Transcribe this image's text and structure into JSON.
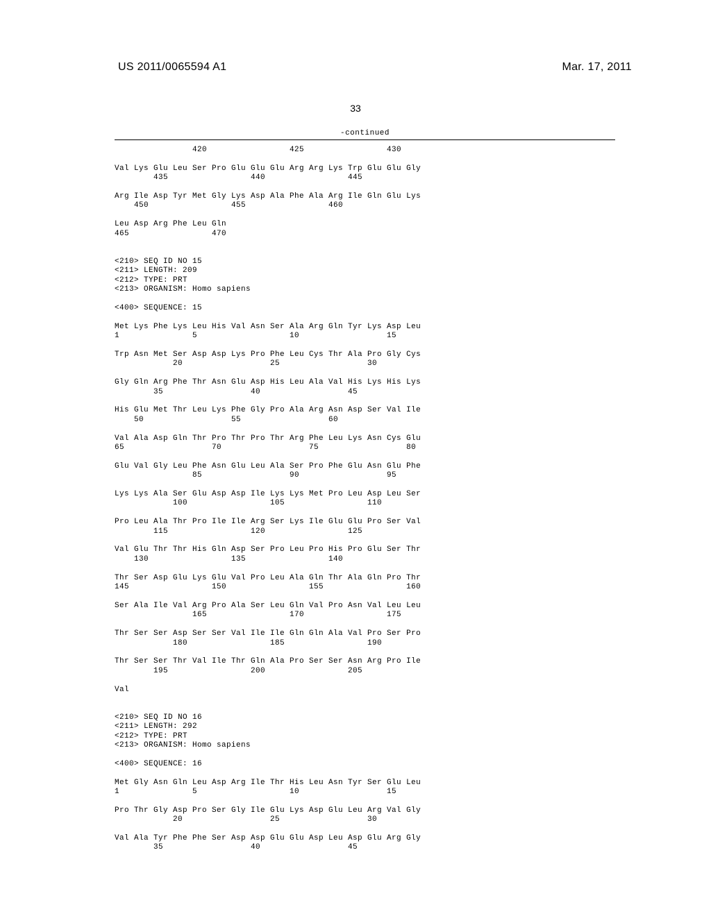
{
  "header": {
    "pub_number": "US 2011/0065594 A1",
    "pub_date": "Mar. 17, 2011"
  },
  "page_number": "33",
  "continued_label": "-continued",
  "seq_block_1": {
    "lines": [
      "                420                 425                 430",
      "",
      "Val Lys Glu Leu Ser Pro Glu Glu Glu Arg Arg Lys Trp Glu Glu Gly",
      "        435                 440                 445",
      "",
      "Arg Ile Asp Tyr Met Gly Lys Asp Ala Phe Ala Arg Ile Gln Glu Lys",
      "    450                 455                 460",
      "",
      "Leu Asp Arg Phe Leu Gln",
      "465                 470"
    ]
  },
  "seq_header_15": {
    "lines": [
      "<210> SEQ ID NO 15",
      "<211> LENGTH: 209",
      "<212> TYPE: PRT",
      "<213> ORGANISM: Homo sapiens",
      "",
      "<400> SEQUENCE: 15"
    ]
  },
  "seq_block_15": {
    "lines": [
      "Met Lys Phe Lys Leu His Val Asn Ser Ala Arg Gln Tyr Lys Asp Leu",
      "1               5                   10                  15",
      "",
      "Trp Asn Met Ser Asp Asp Lys Pro Phe Leu Cys Thr Ala Pro Gly Cys",
      "            20                  25                  30",
      "",
      "Gly Gln Arg Phe Thr Asn Glu Asp His Leu Ala Val His Lys His Lys",
      "        35                  40                  45",
      "",
      "His Glu Met Thr Leu Lys Phe Gly Pro Ala Arg Asn Asp Ser Val Ile",
      "    50                  55                  60",
      "",
      "Val Ala Asp Gln Thr Pro Thr Pro Thr Arg Phe Leu Lys Asn Cys Glu",
      "65                  70                  75                  80",
      "",
      "Glu Val Gly Leu Phe Asn Glu Leu Ala Ser Pro Phe Glu Asn Glu Phe",
      "                85                  90                  95",
      "",
      "Lys Lys Ala Ser Glu Asp Asp Ile Lys Lys Met Pro Leu Asp Leu Ser",
      "            100                 105                 110",
      "",
      "Pro Leu Ala Thr Pro Ile Ile Arg Ser Lys Ile Glu Glu Pro Ser Val",
      "        115                 120                 125",
      "",
      "Val Glu Thr Thr His Gln Asp Ser Pro Leu Pro His Pro Glu Ser Thr",
      "    130                 135                 140",
      "",
      "Thr Ser Asp Glu Lys Glu Val Pro Leu Ala Gln Thr Ala Gln Pro Thr",
      "145                 150                 155                 160",
      "",
      "Ser Ala Ile Val Arg Pro Ala Ser Leu Gln Val Pro Asn Val Leu Leu",
      "                165                 170                 175",
      "",
      "Thr Ser Ser Asp Ser Ser Val Ile Ile Gln Gln Ala Val Pro Ser Pro",
      "            180                 185                 190",
      "",
      "Thr Ser Ser Thr Val Ile Thr Gln Ala Pro Ser Ser Asn Arg Pro Ile",
      "        195                 200                 205",
      "",
      "Val"
    ]
  },
  "seq_header_16": {
    "lines": [
      "<210> SEQ ID NO 16",
      "<211> LENGTH: 292",
      "<212> TYPE: PRT",
      "<213> ORGANISM: Homo sapiens",
      "",
      "<400> SEQUENCE: 16"
    ]
  },
  "seq_block_16": {
    "lines": [
      "Met Gly Asn Gln Leu Asp Arg Ile Thr His Leu Asn Tyr Ser Glu Leu",
      "1               5                   10                  15",
      "",
      "Pro Thr Gly Asp Pro Ser Gly Ile Glu Lys Asp Glu Leu Arg Val Gly",
      "            20                  25                  30",
      "",
      "Val Ala Tyr Phe Phe Ser Asp Asp Glu Glu Asp Leu Asp Glu Arg Gly",
      "        35                  40                  45"
    ]
  }
}
